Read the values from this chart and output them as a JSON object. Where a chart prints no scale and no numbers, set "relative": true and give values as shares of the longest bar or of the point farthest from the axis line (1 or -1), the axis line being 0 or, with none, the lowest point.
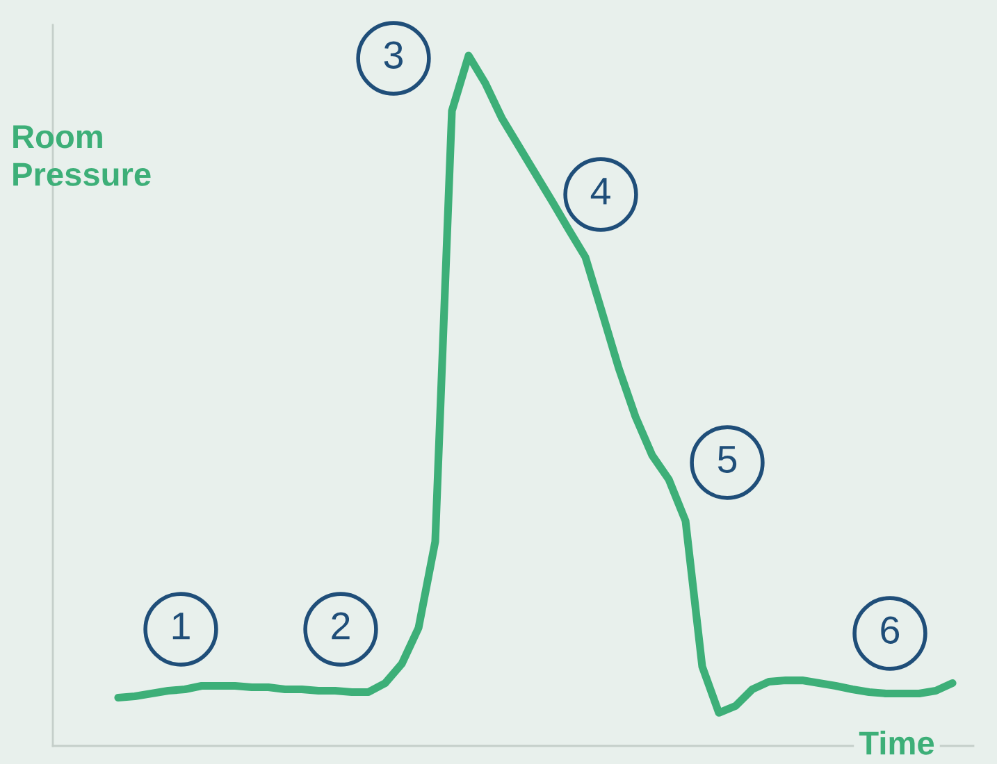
{
  "chart_data": {
    "type": "line",
    "relative": true,
    "ylabel": "Room\nPressure",
    "xlabel": "Time",
    "color": "#3daf78",
    "marker": "none",
    "line_style": "solid",
    "legend": false,
    "categories": [
      null,
      null,
      null,
      null,
      null,
      null,
      null,
      null,
      null,
      null,
      null,
      null,
      null,
      null,
      null,
      null,
      null,
      null,
      null,
      null,
      null,
      null,
      null,
      null,
      null,
      null,
      null,
      null,
      null,
      null,
      null,
      null,
      null,
      null,
      null,
      null,
      null,
      null,
      null,
      null,
      null,
      null,
      null,
      null,
      null,
      null,
      null,
      null,
      null,
      null,
      null
    ],
    "values": [
      0.07,
      0.072,
      0.076,
      0.08,
      0.082,
      0.087,
      0.087,
      0.087,
      0.085,
      0.085,
      0.082,
      0.082,
      0.08,
      0.08,
      0.078,
      0.078,
      0.091,
      0.119,
      0.171,
      0.296,
      0.92,
      1,
      0.96,
      0.909,
      0.869,
      0.829,
      0.789,
      0.748,
      0.708,
      0.628,
      0.547,
      0.477,
      0.421,
      0.386,
      0.326,
      0.115,
      0.048,
      0.058,
      0.082,
      0.093,
      0.095,
      0.095,
      0.091,
      0.087,
      0.082,
      0.078,
      0.076,
      0.076,
      0.076,
      0.08,
      0.091
    ],
    "annotations": [
      "1",
      "2",
      "3",
      "4",
      "5",
      "6"
    ]
  }
}
